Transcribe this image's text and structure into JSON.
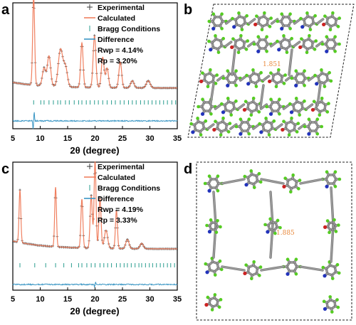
{
  "panel_letters": {
    "a": "a",
    "b": "b",
    "c": "c",
    "d": "d"
  },
  "legend": {
    "experimental": "Experimental",
    "calculated": "Calculated",
    "bragg": "Bragg Conditions",
    "difference": "Difference"
  },
  "colors": {
    "experimental": "#3a3a3a",
    "calculated": "#f08060",
    "bragg": "#2a9d8f",
    "difference": "#3a96c4",
    "carbon": "#9a9a9a",
    "hydrogen": "#55cc22",
    "nitrogen": "#2233bb",
    "oxygen": "#cc2222",
    "distance_label": "#e8883a"
  },
  "crystal_labels": {
    "b_distance": "1.851",
    "d_distance": "1.885"
  },
  "chart_data": [
    {
      "type": "line",
      "panel": "a",
      "xlabel": "2θ (degree)",
      "xlim": [
        5,
        35
      ],
      "xticks": [
        5,
        10,
        15,
        20,
        25,
        30,
        35
      ],
      "stats": {
        "rwp": "Rwp = 4.14%",
        "rp": "Rp = 3.20%"
      },
      "series": [
        {
          "name": "Experimental",
          "style": "markers"
        },
        {
          "name": "Calculated",
          "style": "line"
        },
        {
          "name": "Bragg Conditions",
          "style": "ticks"
        },
        {
          "name": "Difference",
          "style": "line"
        }
      ],
      "peaks": [
        {
          "x": 8.8,
          "h": 1.0,
          "w": 0.18
        },
        {
          "x": 10.7,
          "h": 0.2,
          "w": 0.3
        },
        {
          "x": 11.6,
          "h": 0.34,
          "w": 0.3
        },
        {
          "x": 13.7,
          "h": 0.42,
          "w": 0.4
        },
        {
          "x": 14.6,
          "h": 0.22,
          "w": 0.35
        },
        {
          "x": 17.6,
          "h": 0.5,
          "w": 0.22
        },
        {
          "x": 19.9,
          "h": 0.58,
          "w": 0.25
        },
        {
          "x": 21.4,
          "h": 0.34,
          "w": 0.25
        },
        {
          "x": 22.2,
          "h": 0.22,
          "w": 0.25
        },
        {
          "x": 24.6,
          "h": 0.29,
          "w": 0.25
        },
        {
          "x": 26.8,
          "h": 0.08,
          "w": 0.3
        },
        {
          "x": 29.7,
          "h": 0.08,
          "w": 0.35
        }
      ],
      "baseline": 0.1,
      "bragg": [
        8.8,
        10.1,
        10.7,
        11.6,
        12.4,
        13.2,
        13.7,
        14.6,
        15.3,
        16.2,
        17.0,
        17.6,
        18.4,
        19.1,
        19.9,
        20.6,
        21.4,
        22.2,
        23.0,
        23.7,
        24.6,
        25.3,
        26.1,
        26.8,
        27.5,
        28.3,
        29.0,
        29.7,
        30.4,
        31.1,
        31.8,
        32.5,
        33.2,
        34.0,
        34.7
      ],
      "difference_spike": {
        "x": 8.8,
        "amp": 0.5
      }
    },
    {
      "type": "line",
      "panel": "c",
      "xlabel": "2θ (degree)",
      "xlim": [
        5,
        35
      ],
      "xticks": [
        5,
        10,
        15,
        20,
        25,
        30,
        35
      ],
      "stats": {
        "rwp": "Rwp = 4.19%",
        "rp": "Rp = 3.33%"
      },
      "series": [
        {
          "name": "Experimental",
          "style": "markers"
        },
        {
          "name": "Calculated",
          "style": "line"
        },
        {
          "name": "Bragg Conditions",
          "style": "ticks"
        },
        {
          "name": "Difference",
          "style": "line"
        }
      ],
      "peaks": [
        {
          "x": 6.3,
          "h": 0.58,
          "w": 0.16
        },
        {
          "x": 12.8,
          "h": 0.66,
          "w": 0.16
        },
        {
          "x": 17.6,
          "h": 0.54,
          "w": 0.18
        },
        {
          "x": 19.3,
          "h": 0.58,
          "w": 0.2
        },
        {
          "x": 20.0,
          "h": 0.96,
          "w": 0.18
        },
        {
          "x": 20.9,
          "h": 0.55,
          "w": 0.2
        },
        {
          "x": 22.0,
          "h": 0.2,
          "w": 0.3
        },
        {
          "x": 23.9,
          "h": 0.42,
          "w": 0.18
        },
        {
          "x": 25.9,
          "h": 0.1,
          "w": 0.3
        },
        {
          "x": 28.5,
          "h": 0.06,
          "w": 0.3
        }
      ],
      "baseline": 0.14,
      "bragg": [
        6.3,
        9.0,
        11.0,
        12.8,
        14.3,
        15.7,
        17.0,
        17.6,
        18.5,
        19.3,
        20.0,
        20.9,
        21.6,
        22.3,
        23.0,
        23.9,
        24.6,
        25.3,
        25.9,
        26.6,
        27.3,
        28.0,
        28.5,
        29.2,
        29.9,
        30.5,
        31.2,
        31.9,
        32.5,
        33.2,
        33.8,
        34.5
      ],
      "difference_spike": {
        "x": 20.0,
        "amp": 0.12
      }
    }
  ]
}
